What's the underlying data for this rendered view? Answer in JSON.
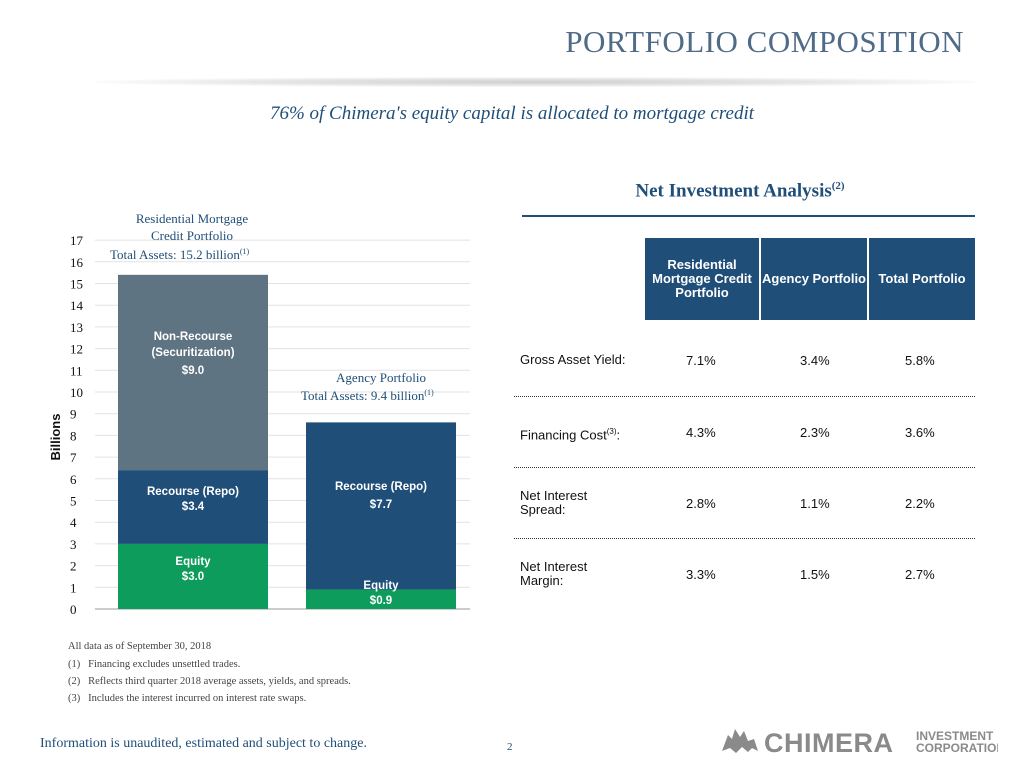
{
  "header": {
    "title": "PORTFOLIO COMPOSITION",
    "subtitle": "76% of Chimera's equity capital is allocated to mortgage credit"
  },
  "chart_data": {
    "type": "bar",
    "stacked": true,
    "ylabel": "Billions",
    "ylim": [
      0,
      17
    ],
    "yticks": [
      0,
      1,
      2,
      3,
      4,
      5,
      6,
      7,
      8,
      9,
      10,
      11,
      12,
      13,
      14,
      15,
      16,
      17
    ],
    "grid": true,
    "categories": [
      {
        "name": "Residential Mortgage Credit Portfolio",
        "lines": [
          "Residential Mortgage",
          "Credit Portfolio"
        ],
        "total_label": "Total Assets: 15.2 billion",
        "total_note": "(1)"
      },
      {
        "name": "Agency Portfolio",
        "lines": [
          "Agency Portfolio"
        ],
        "total_label": "Total Assets: 9.4 billion",
        "total_note": "(1)"
      }
    ],
    "series": [
      {
        "name": "Equity",
        "values": [
          3.0,
          0.9
        ],
        "labels": [
          "$3.0",
          "$0.9"
        ],
        "color": "#0d9c5b"
      },
      {
        "name": "Recourse (Repo)",
        "values": [
          3.4,
          7.7
        ],
        "labels": [
          "$3.4",
          "$7.7"
        ],
        "color": "#1f4e79"
      },
      {
        "name": "Non-Recourse (Securitization)",
        "values": [
          9.0,
          0
        ],
        "labels": [
          "$9.0",
          ""
        ],
        "color": "#5f7482"
      }
    ]
  },
  "segment_text": {
    "non_recourse_1": "Non-Recourse",
    "non_recourse_2": "(Securitization)",
    "non_recourse_val": "$9.0",
    "repo_left": "Recourse (Repo)",
    "repo_left_val": "$3.4",
    "repo_right": "Recourse (Repo)",
    "repo_right_val": "$7.7",
    "equity_left": "Equity",
    "equity_left_val": "$3.0",
    "equity_right": "Equity",
    "equity_right_val": "$0.9"
  },
  "net_investment": {
    "title": "Net Investment Analysis",
    "title_note": "(2)",
    "columns": [
      "Residential Mortgage Credit Portfolio",
      "Agency Portfolio",
      "Total  Portfolio"
    ],
    "rows": [
      {
        "label": "Gross Asset Yield:",
        "note": "",
        "values": [
          "7.1%",
          "3.4%",
          "5.8%"
        ]
      },
      {
        "label": "Financing Cost",
        "note": "(3)",
        "suffix": ":",
        "values": [
          "4.3%",
          "2.3%",
          "3.6%"
        ]
      },
      {
        "label": "Net Interest Spread:",
        "note": "",
        "values": [
          "2.8%",
          "1.1%",
          "2.2%"
        ]
      },
      {
        "label": "Net Interest Margin:",
        "note": "",
        "values": [
          "3.3%",
          "1.5%",
          "2.7%"
        ]
      }
    ]
  },
  "notes": {
    "asof": "All data as of September 30, 2018",
    "items": [
      {
        "num": "(1)",
        "text": "Financing excludes unsettled trades."
      },
      {
        "num": "(2)",
        "text": "Reflects third quarter 2018 average assets, yields, and spreads."
      },
      {
        "num": "(3)",
        "text": "Includes the interest incurred on interest rate swaps."
      }
    ]
  },
  "footer": {
    "disclaimer": "Information is unaudited, estimated and subject to change.",
    "page_number": "2",
    "logo_text": "CHIMERA",
    "logo_sub1": "INVESTMENT",
    "logo_sub2": "CORPORATION"
  },
  "colors": {
    "navy": "#1f4e79",
    "slate": "#5f7482",
    "green": "#0d9c5b",
    "title_blue": "#4f6b87"
  }
}
